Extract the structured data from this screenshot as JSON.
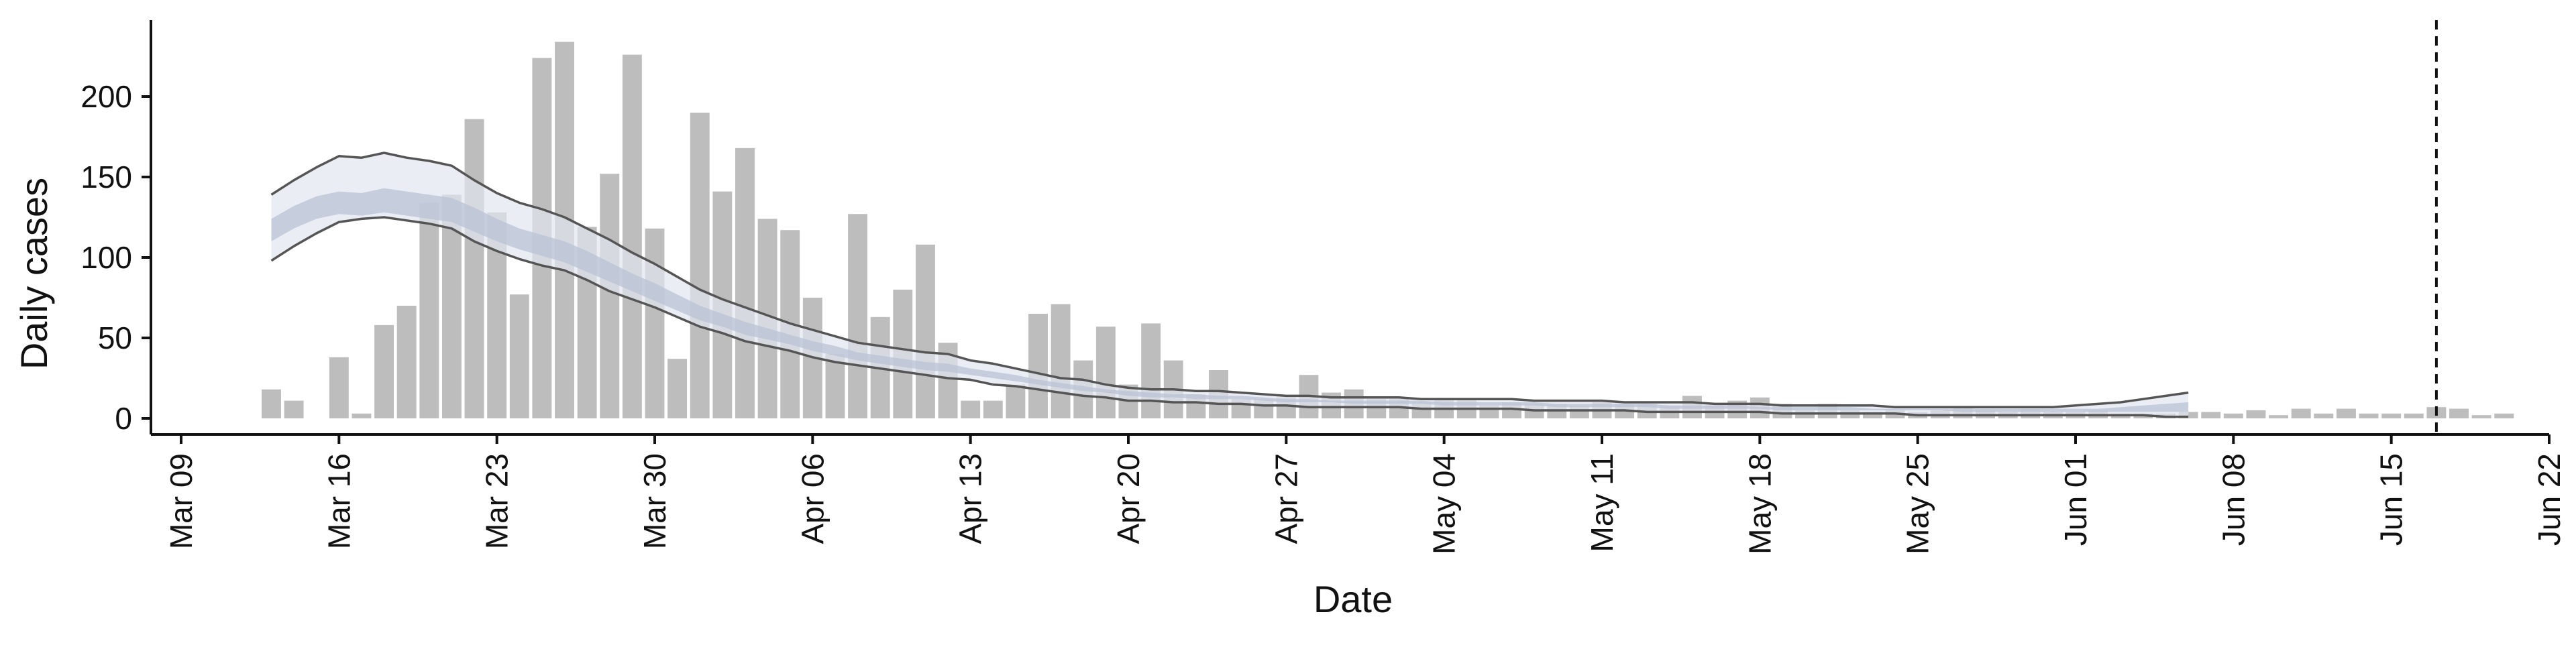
{
  "chart_data": {
    "type": "bar",
    "title": "",
    "xlabel": "Date",
    "ylabel": "Daily cases",
    "grid": false,
    "legend": "none",
    "x_range": [
      "2020-03-09",
      "2020-06-22"
    ],
    "ylim": [
      0,
      235
    ],
    "x_ticks": [
      "2020-03-09",
      "2020-03-16",
      "2020-03-23",
      "2020-03-30",
      "2020-04-06",
      "2020-04-13",
      "2020-04-20",
      "2020-04-27",
      "2020-05-04",
      "2020-05-11",
      "2020-05-18",
      "2020-05-25",
      "2020-06-01",
      "2020-06-08",
      "2020-06-15",
      "2020-06-22"
    ],
    "x_tick_labels": [
      "Mar 09",
      "Mar 16",
      "Mar 23",
      "Mar 30",
      "Apr 06",
      "Apr 13",
      "Apr 20",
      "Apr 27",
      "May 04",
      "May 11",
      "May 18",
      "May 25",
      "Jun 01",
      "Jun 08",
      "Jun 15",
      "Jun 22"
    ],
    "y_ticks": [
      0,
      50,
      100,
      150,
      200
    ],
    "y_tick_labels": [
      "0",
      "50",
      "100",
      "150",
      "200"
    ],
    "reference_line": {
      "date": "2020-06-17",
      "style": "dashed"
    },
    "colors": {
      "bars": "#bdbdbd",
      "band_outer": "#e3e6ef",
      "band_inner": "#b9c1d6",
      "bound_lines": "#555555",
      "axis": "#111111"
    },
    "bar_series": {
      "name": "Daily cases",
      "start_date": "2020-03-13",
      "values": [
        18,
        11,
        0,
        38,
        3,
        58,
        70,
        134,
        139,
        186,
        128,
        77,
        224,
        234,
        119,
        152,
        226,
        118,
        37,
        190,
        141,
        168,
        124,
        117,
        75,
        40,
        127,
        63,
        80,
        108,
        47,
        11,
        11,
        21,
        65,
        71,
        36,
        57,
        21,
        59,
        36,
        15,
        30,
        12,
        12,
        13,
        27,
        16,
        18,
        12,
        12,
        10,
        12,
        12,
        8,
        10,
        9,
        9,
        8,
        10,
        9,
        9,
        8,
        14,
        8,
        11,
        13,
        9,
        5,
        9,
        5,
        4,
        5,
        4,
        5,
        7,
        5,
        4,
        6,
        4,
        4,
        5,
        3,
        3,
        3,
        4,
        4,
        3,
        5,
        2,
        6,
        3,
        6,
        3,
        3,
        3,
        7,
        6,
        2,
        3
      ]
    },
    "model_band": {
      "name": "",
      "start_date": "2020-03-13",
      "outer_upper": [
        139,
        148,
        156,
        163,
        162,
        165,
        162,
        160,
        157,
        148,
        140,
        134,
        130,
        125,
        118,
        111,
        103,
        96,
        88,
        80,
        74,
        69,
        64,
        59,
        55,
        51,
        47,
        45,
        43,
        41,
        40,
        36,
        34,
        31,
        28,
        25,
        24,
        21,
        19,
        18,
        18,
        17,
        17,
        16,
        15,
        14,
        14,
        13,
        13,
        13,
        13,
        12,
        12,
        12,
        12,
        12,
        11,
        11,
        11,
        11,
        10,
        10,
        10,
        10,
        9,
        9,
        9,
        8,
        8,
        8,
        8,
        8,
        7,
        7,
        7,
        7,
        7,
        7,
        7,
        7,
        8,
        9,
        10,
        12,
        14,
        16
      ],
      "inner_upper": [
        124,
        132,
        138,
        141,
        140,
        143,
        141,
        139,
        137,
        131,
        124,
        118,
        114,
        110,
        104,
        97,
        90,
        84,
        77,
        70,
        65,
        60,
        56,
        52,
        48,
        45,
        41,
        39,
        37,
        35,
        34,
        31,
        29,
        27,
        24,
        22,
        20,
        18,
        17,
        16,
        15,
        15,
        14,
        14,
        13,
        12,
        12,
        11,
        11,
        11,
        11,
        11,
        10,
        10,
        10,
        10,
        10,
        9,
        9,
        9,
        9,
        9,
        8,
        8,
        8,
        8,
        7,
        7,
        7,
        7,
        7,
        6,
        6,
        6,
        6,
        6,
        6,
        6,
        6,
        6,
        6,
        6,
        7,
        8,
        9,
        10
      ],
      "inner_lower": [
        110,
        118,
        124,
        127,
        126,
        128,
        126,
        124,
        122,
        116,
        110,
        105,
        101,
        97,
        91,
        85,
        79,
        73,
        67,
        61,
        57,
        52,
        49,
        46,
        42,
        39,
        36,
        34,
        32,
        30,
        29,
        27,
        25,
        23,
        21,
        19,
        17,
        16,
        14,
        13,
        13,
        12,
        12,
        12,
        11,
        10,
        10,
        10,
        9,
        9,
        9,
        9,
        8,
        8,
        8,
        8,
        8,
        7,
        7,
        7,
        7,
        7,
        6,
        6,
        6,
        6,
        6,
        5,
        5,
        5,
        5,
        5,
        5,
        5,
        5,
        4,
        4,
        4,
        4,
        4,
        4,
        4,
        4,
        4,
        4,
        4
      ],
      "outer_lower": [
        98,
        107,
        115,
        122,
        124,
        125,
        123,
        121,
        118,
        110,
        104,
        99,
        95,
        92,
        86,
        79,
        74,
        69,
        63,
        57,
        53,
        48,
        45,
        42,
        38,
        35,
        33,
        31,
        29,
        27,
        25,
        24,
        21,
        20,
        18,
        16,
        14,
        13,
        11,
        11,
        10,
        10,
        9,
        9,
        8,
        8,
        7,
        7,
        7,
        7,
        7,
        6,
        6,
        6,
        6,
        6,
        5,
        5,
        5,
        5,
        5,
        4,
        4,
        4,
        4,
        4,
        4,
        3,
        3,
        3,
        3,
        3,
        3,
        2,
        2,
        2,
        2,
        2,
        2,
        2,
        2,
        2,
        2,
        2,
        1,
        1
      ]
    }
  }
}
